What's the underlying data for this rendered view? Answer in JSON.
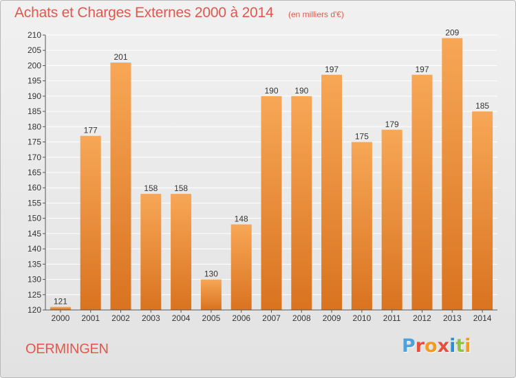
{
  "title": "Achats et Charges Externes 2000 à 2014",
  "subtitle": "(en milliers d'€)",
  "commune": "OERMINGEN",
  "logo": {
    "text": "Proxiti",
    "letter_colors": [
      "#4aa3df",
      "#e94e3c",
      "#f29b1d",
      "#e94e3c",
      "#2a8fd6",
      "#8cc63f",
      "#f29b1d"
    ]
  },
  "colors": {
    "title": "#e0584c",
    "bar_light": "#f7a756",
    "bar_dark": "#d97320",
    "grid": "#ffffff",
    "axis": "#555555"
  },
  "chart_data": {
    "type": "bar",
    "categories": [
      "2000",
      "2001",
      "2002",
      "2003",
      "2004",
      "2005",
      "2006",
      "2007",
      "2008",
      "2009",
      "2010",
      "2011",
      "2012",
      "2013",
      "2014"
    ],
    "values": [
      121,
      177,
      201,
      158,
      158,
      130,
      148,
      190,
      190,
      197,
      175,
      179,
      197,
      209,
      185
    ],
    "ylim": [
      120,
      210
    ],
    "yticks": [
      120,
      125,
      130,
      135,
      140,
      145,
      150,
      155,
      160,
      165,
      170,
      175,
      180,
      185,
      190,
      195,
      200,
      205,
      210
    ],
    "grid": true,
    "xlabel": "",
    "ylabel": ""
  }
}
